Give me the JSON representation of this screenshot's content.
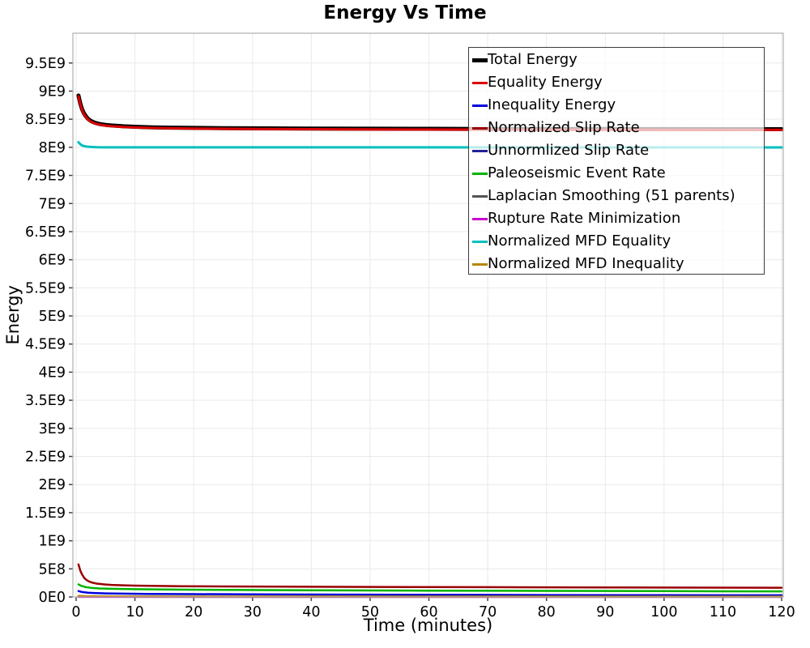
{
  "chart_data": {
    "type": "line",
    "title": "Energy Vs Time",
    "xlabel": "Time (minutes)",
    "ylabel": "Energy",
    "xlim": [
      0,
      120
    ],
    "ylim": [
      0,
      10030000000.0
    ],
    "grid": true,
    "legend_position": "top-right",
    "x_ticks": [
      {
        "value": 0,
        "label": "0"
      },
      {
        "value": 10,
        "label": "10"
      },
      {
        "value": 20,
        "label": "20"
      },
      {
        "value": 30,
        "label": "30"
      },
      {
        "value": 40,
        "label": "40"
      },
      {
        "value": 50,
        "label": "50"
      },
      {
        "value": 60,
        "label": "60"
      },
      {
        "value": 70,
        "label": "70"
      },
      {
        "value": 80,
        "label": "80"
      },
      {
        "value": 90,
        "label": "90"
      },
      {
        "value": 100,
        "label": "100"
      },
      {
        "value": 110,
        "label": "110"
      },
      {
        "value": 120,
        "label": "120"
      }
    ],
    "y_ticks": [
      {
        "value": 0,
        "label": "0E0"
      },
      {
        "value": 500000000.0,
        "label": "5E8"
      },
      {
        "value": 1000000000.0,
        "label": "1E9"
      },
      {
        "value": 1500000000.0,
        "label": "1.5E9"
      },
      {
        "value": 2000000000.0,
        "label": "2E9"
      },
      {
        "value": 2500000000.0,
        "label": "2.5E9"
      },
      {
        "value": 3000000000.0,
        "label": "3E9"
      },
      {
        "value": 3500000000.0,
        "label": "3.5E9"
      },
      {
        "value": 4000000000.0,
        "label": "4E9"
      },
      {
        "value": 4500000000.0,
        "label": "4.5E9"
      },
      {
        "value": 5000000000.0,
        "label": "5E9"
      },
      {
        "value": 5500000000.0,
        "label": "5.5E9"
      },
      {
        "value": 6000000000.0,
        "label": "6E9"
      },
      {
        "value": 6500000000.0,
        "label": "6.5E9"
      },
      {
        "value": 7000000000.0,
        "label": "7E9"
      },
      {
        "value": 7500000000.0,
        "label": "7.5E9"
      },
      {
        "value": 8000000000.0,
        "label": "8E9"
      },
      {
        "value": 8500000000.0,
        "label": "8.5E9"
      },
      {
        "value": 9000000000.0,
        "label": "9E9"
      },
      {
        "value": 9500000000.0,
        "label": "9.5E9"
      }
    ],
    "colors": {
      "grid": "#e9e9e9",
      "plot_border": "#b0b0b0",
      "tick": "#444444",
      "tick_label": "#000000"
    },
    "series": [
      {
        "name": "Total Energy",
        "color": "#000000",
        "width": 5,
        "points": [
          [
            0.4,
            8920000000.0
          ],
          [
            0.7,
            8780000000.0
          ],
          [
            1,
            8680000000.0
          ],
          [
            1.3,
            8610000000.0
          ],
          [
            1.6,
            8560000000.0
          ],
          [
            2,
            8510000000.0
          ],
          [
            2.5,
            8470000000.0
          ],
          [
            3,
            8445000000.0
          ],
          [
            3.5,
            8428000000.0
          ],
          [
            4,
            8415000000.0
          ],
          [
            5,
            8398000000.0
          ],
          [
            6,
            8388000000.0
          ],
          [
            8,
            8374000000.0
          ],
          [
            10,
            8365000000.0
          ],
          [
            13,
            8356000000.0
          ],
          [
            16,
            8350000000.0
          ],
          [
            20,
            8345000000.0
          ],
          [
            25,
            8341000000.0
          ],
          [
            30,
            8338000000.0
          ],
          [
            40,
            8334000000.0
          ],
          [
            50,
            8331000000.0
          ],
          [
            60,
            8329000000.0
          ],
          [
            70,
            8327000000.0
          ],
          [
            80,
            8326000000.0
          ],
          [
            90,
            8325000000.0
          ],
          [
            100,
            8324000000.0
          ],
          [
            110,
            8323000000.0
          ],
          [
            120,
            8322000000.0
          ]
        ]
      },
      {
        "name": "Equality Energy",
        "color": "#dd0000",
        "width": 3,
        "points": [
          [
            0.4,
            8908000000.0
          ],
          [
            0.7,
            8768000000.0
          ],
          [
            1,
            8668000000.0
          ],
          [
            1.3,
            8598000000.0
          ],
          [
            1.6,
            8548000000.0
          ],
          [
            2,
            8498000000.0
          ],
          [
            2.5,
            8458000000.0
          ],
          [
            3,
            8433000000.0
          ],
          [
            3.5,
            8416000000.0
          ],
          [
            4,
            8403000000.0
          ],
          [
            5,
            8386000000.0
          ],
          [
            6,
            8376000000.0
          ],
          [
            8,
            8362000000.0
          ],
          [
            10,
            8353000000.0
          ],
          [
            13,
            8344000000.0
          ],
          [
            16,
            8338000000.0
          ],
          [
            20,
            8333000000.0
          ],
          [
            25,
            8329000000.0
          ],
          [
            30,
            8326000000.0
          ],
          [
            40,
            8322000000.0
          ],
          [
            50,
            8319000000.0
          ],
          [
            60,
            8317000000.0
          ],
          [
            70,
            8315000000.0
          ],
          [
            80,
            8314000000.0
          ],
          [
            90,
            8313000000.0
          ],
          [
            100,
            8312000000.0
          ],
          [
            110,
            8311000000.0
          ],
          [
            120,
            8310000000.0
          ]
        ]
      },
      {
        "name": "Inequality Energy",
        "color": "#0000dd",
        "width": 2.5,
        "points": [
          [
            0.4,
            105000000.0
          ],
          [
            1,
            88000000.0
          ],
          [
            2,
            76000000.0
          ],
          [
            3,
            70000000.0
          ],
          [
            5,
            64000000.0
          ],
          [
            8,
            59000000.0
          ],
          [
            12,
            55000000.0
          ],
          [
            20,
            50000000.0
          ],
          [
            30,
            46000000.0
          ],
          [
            40,
            43000000.0
          ],
          [
            60,
            39000000.0
          ],
          [
            80,
            35000000.0
          ],
          [
            100,
            32000000.0
          ],
          [
            120,
            30000000.0
          ]
        ]
      },
      {
        "name": "Normalized Slip Rate",
        "color": "#990000",
        "width": 2.5,
        "points": [
          [
            0.4,
            580000000.0
          ],
          [
            0.7,
            470000000.0
          ],
          [
            1,
            400000000.0
          ],
          [
            1.4,
            335000000.0
          ],
          [
            1.8,
            300000000.0
          ],
          [
            2.2,
            275000000.0
          ],
          [
            2.8,
            253000000.0
          ],
          [
            3.5,
            238000000.0
          ],
          [
            4.5,
            226000000.0
          ],
          [
            6,
            215000000.0
          ],
          [
            8,
            207000000.0
          ],
          [
            10,
            202000000.0
          ],
          [
            14,
            196000000.0
          ],
          [
            18,
            192000000.0
          ],
          [
            25,
            188000000.0
          ],
          [
            35,
            184000000.0
          ],
          [
            50,
            179000000.0
          ],
          [
            70,
            174000000.0
          ],
          [
            90,
            170000000.0
          ],
          [
            120,
            165000000.0
          ]
        ]
      },
      {
        "name": "Unnormlized Slip Rate",
        "color": "#222299",
        "width": 2.5,
        "points": [
          [
            0.4,
            5000000.0
          ],
          [
            120,
            4000000.0
          ]
        ]
      },
      {
        "name": "Paleoseismic Event Rate",
        "color": "#00b400",
        "width": 2.5,
        "points": [
          [
            0.4,
            225000000.0
          ],
          [
            0.8,
            200000000.0
          ],
          [
            1.5,
            178000000.0
          ],
          [
            2.5,
            163000000.0
          ],
          [
            4,
            152000000.0
          ],
          [
            6,
            145000000.0
          ],
          [
            10,
            138000000.0
          ],
          [
            15,
            133000000.0
          ],
          [
            25,
            126000000.0
          ],
          [
            40,
            119000000.0
          ],
          [
            60,
            113000000.0
          ],
          [
            80,
            108000000.0
          ],
          [
            100,
            104000000.0
          ],
          [
            120,
            100000000.0
          ]
        ]
      },
      {
        "name": "Laplacian Smoothing (51 parents)",
        "color": "#555555",
        "width": 2.5,
        "points": [
          [
            0.4,
            3000000.0
          ],
          [
            120,
            2000000.0
          ]
        ]
      },
      {
        "name": "Rupture Rate Minimization",
        "color": "#cc00cc",
        "width": 2.5,
        "points": [
          [
            0.4,
            2000000.0
          ],
          [
            120,
            1500000.0
          ]
        ]
      },
      {
        "name": "Normalized MFD Equality",
        "color": "#00bfbf",
        "width": 3,
        "points": [
          [
            0.4,
            8090000000.0
          ],
          [
            0.8,
            8045000000.0
          ],
          [
            1.2,
            8025000000.0
          ],
          [
            1.8,
            8012000000.0
          ],
          [
            2.5,
            8006000000.0
          ],
          [
            3.5,
            8002000000.0
          ],
          [
            5,
            8000000000.0
          ],
          [
            20,
            7999000000.0
          ],
          [
            120,
            7998000000.0
          ]
        ]
      },
      {
        "name": "Normalized MFD Inequality",
        "color": "#b8860b",
        "width": 2.5,
        "points": [
          [
            0.4,
            20000000.0
          ],
          [
            1.5,
            15000000.0
          ],
          [
            4,
            11000000.0
          ],
          [
            10,
            8000000.0
          ],
          [
            30,
            7000000.0
          ],
          [
            120,
            6000000.0
          ]
        ]
      }
    ]
  }
}
